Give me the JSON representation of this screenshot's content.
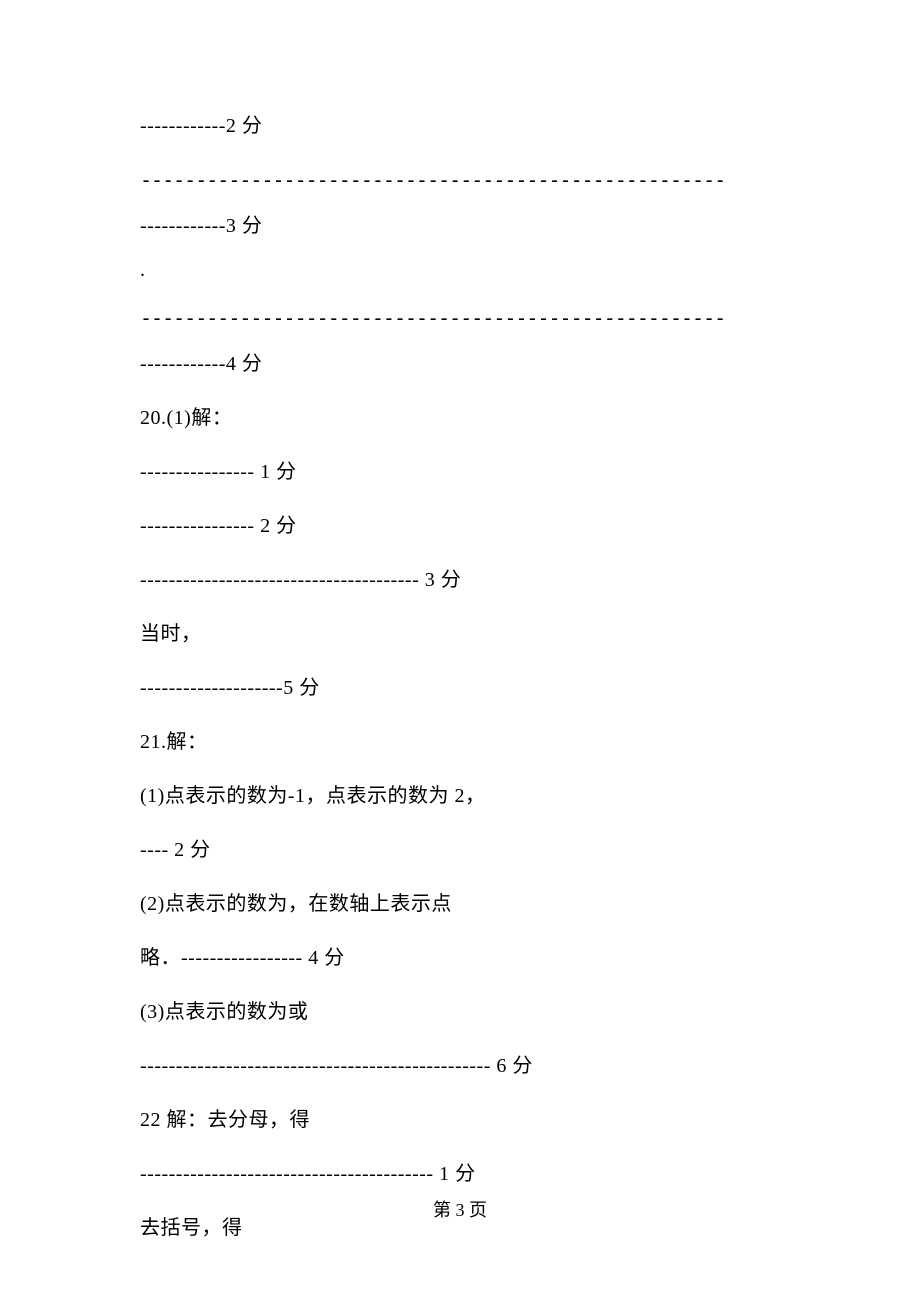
{
  "content": {
    "l1": "------------2 分",
    "l2": "-----------------------------------------------------",
    "l3": "------------3 分",
    "l4": ".",
    "l5": "-----------------------------------------------------",
    "l6": "------------4 分",
    "l7": "20.(1)解：",
    "l8": "---------------- 1 分",
    "l9": "---------------- 2 分",
    "l10": "--------------------------------------- 3 分",
    "l11": "当时，",
    "l12": "--------------------5 分",
    "l13": "21.解：",
    "l14": "(1)点表示的数为-1，点表示的数为 2，",
    "l15": "---- 2 分",
    "l16": "(2)点表示的数为，在数轴上表示点",
    "l17": "略．----------------- 4 分",
    "l18": "(3)点表示的数为或",
    "l19": "------------------------------------------------- 6 分",
    "l20": "22 解：去分母，得",
    "l21": "----------------------------------------- 1 分",
    "l22": "去括号，得"
  },
  "footer": {
    "page_label": "第 3 页"
  },
  "style": {
    "background_color": "#ffffff",
    "text_color": "#000000",
    "font_size_body": 20,
    "font_size_footer": 18,
    "font_family": "SimSun"
  }
}
